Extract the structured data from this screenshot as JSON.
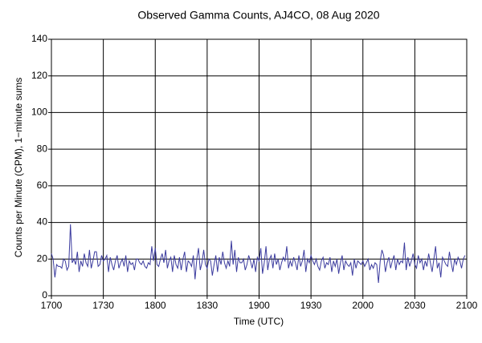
{
  "chart_data": {
    "type": "line",
    "title": "Observed Gamma Counts, AJ4CO, 08 Aug 2020",
    "x_label": "Time (UTC)",
    "y_label": "Counts per Minute (CPM), 1−minute sums",
    "series": [
      {
        "color": "#3b3b9e",
        "values": [
          23,
          20,
          10,
          17,
          16,
          16,
          15,
          20,
          19,
          14,
          16,
          39,
          18,
          20,
          17,
          24,
          13,
          19,
          16,
          23,
          18,
          16,
          25,
          15,
          19,
          24,
          24,
          16,
          17,
          22,
          19,
          20,
          22,
          13,
          21,
          17,
          14,
          19,
          22,
          15,
          18,
          20,
          16,
          22,
          13,
          19,
          17,
          18,
          14,
          20,
          20,
          18,
          17,
          19,
          16,
          15,
          18,
          17,
          27,
          19,
          26,
          17,
          16,
          20,
          23,
          18,
          25,
          15,
          19,
          21,
          13,
          22,
          17,
          15,
          21,
          14,
          20,
          24,
          13,
          19,
          18,
          16,
          22,
          9,
          20,
          26,
          14,
          18,
          25,
          17,
          15,
          20,
          19,
          11,
          17,
          22,
          13,
          21,
          17,
          24,
          18,
          15,
          19,
          16,
          30,
          17,
          25,
          13,
          21,
          18,
          18,
          20,
          14,
          17,
          22,
          19,
          15,
          20,
          13,
          21,
          19,
          26,
          12,
          18,
          27,
          14,
          20,
          22,
          15,
          23,
          17,
          20,
          14,
          18,
          21,
          19,
          27,
          15,
          19,
          16,
          21,
          18,
          14,
          22,
          16,
          19,
          25,
          13,
          20,
          18,
          22,
          19,
          17,
          20,
          16,
          14,
          19,
          21,
          15,
          18,
          17,
          21,
          13,
          19,
          16,
          20,
          12,
          18,
          22,
          14,
          19,
          17,
          16,
          18,
          11,
          20,
          15,
          19,
          18,
          17,
          19,
          16,
          18,
          20,
          14,
          17,
          15,
          18,
          17,
          7,
          19,
          25,
          22,
          13,
          18,
          21,
          15,
          19,
          22,
          14,
          20,
          17,
          19,
          18,
          29,
          14,
          21,
          16,
          19,
          23,
          17,
          15,
          22,
          18,
          20,
          14,
          19,
          16,
          23,
          18,
          13,
          20,
          27,
          15,
          18,
          10,
          21,
          19,
          17,
          16,
          24,
          18,
          13,
          20,
          17,
          21,
          19,
          15,
          20,
          22
        ]
      }
    ],
    "xlim": [
      0,
      240
    ],
    "xticks": [
      {
        "value": 0,
        "label": "1700"
      },
      {
        "value": 30,
        "label": "1730"
      },
      {
        "value": 60,
        "label": "1800"
      },
      {
        "value": 90,
        "label": "1830"
      },
      {
        "value": 120,
        "label": "1900"
      },
      {
        "value": 150,
        "label": "1930"
      },
      {
        "value": 180,
        "label": "2000"
      },
      {
        "value": 210,
        "label": "2030"
      },
      {
        "value": 240,
        "label": "2100"
      }
    ],
    "ylim": [
      0,
      140
    ],
    "yticks": [
      0,
      20,
      40,
      60,
      80,
      100,
      120,
      140
    ],
    "grid": true
  }
}
